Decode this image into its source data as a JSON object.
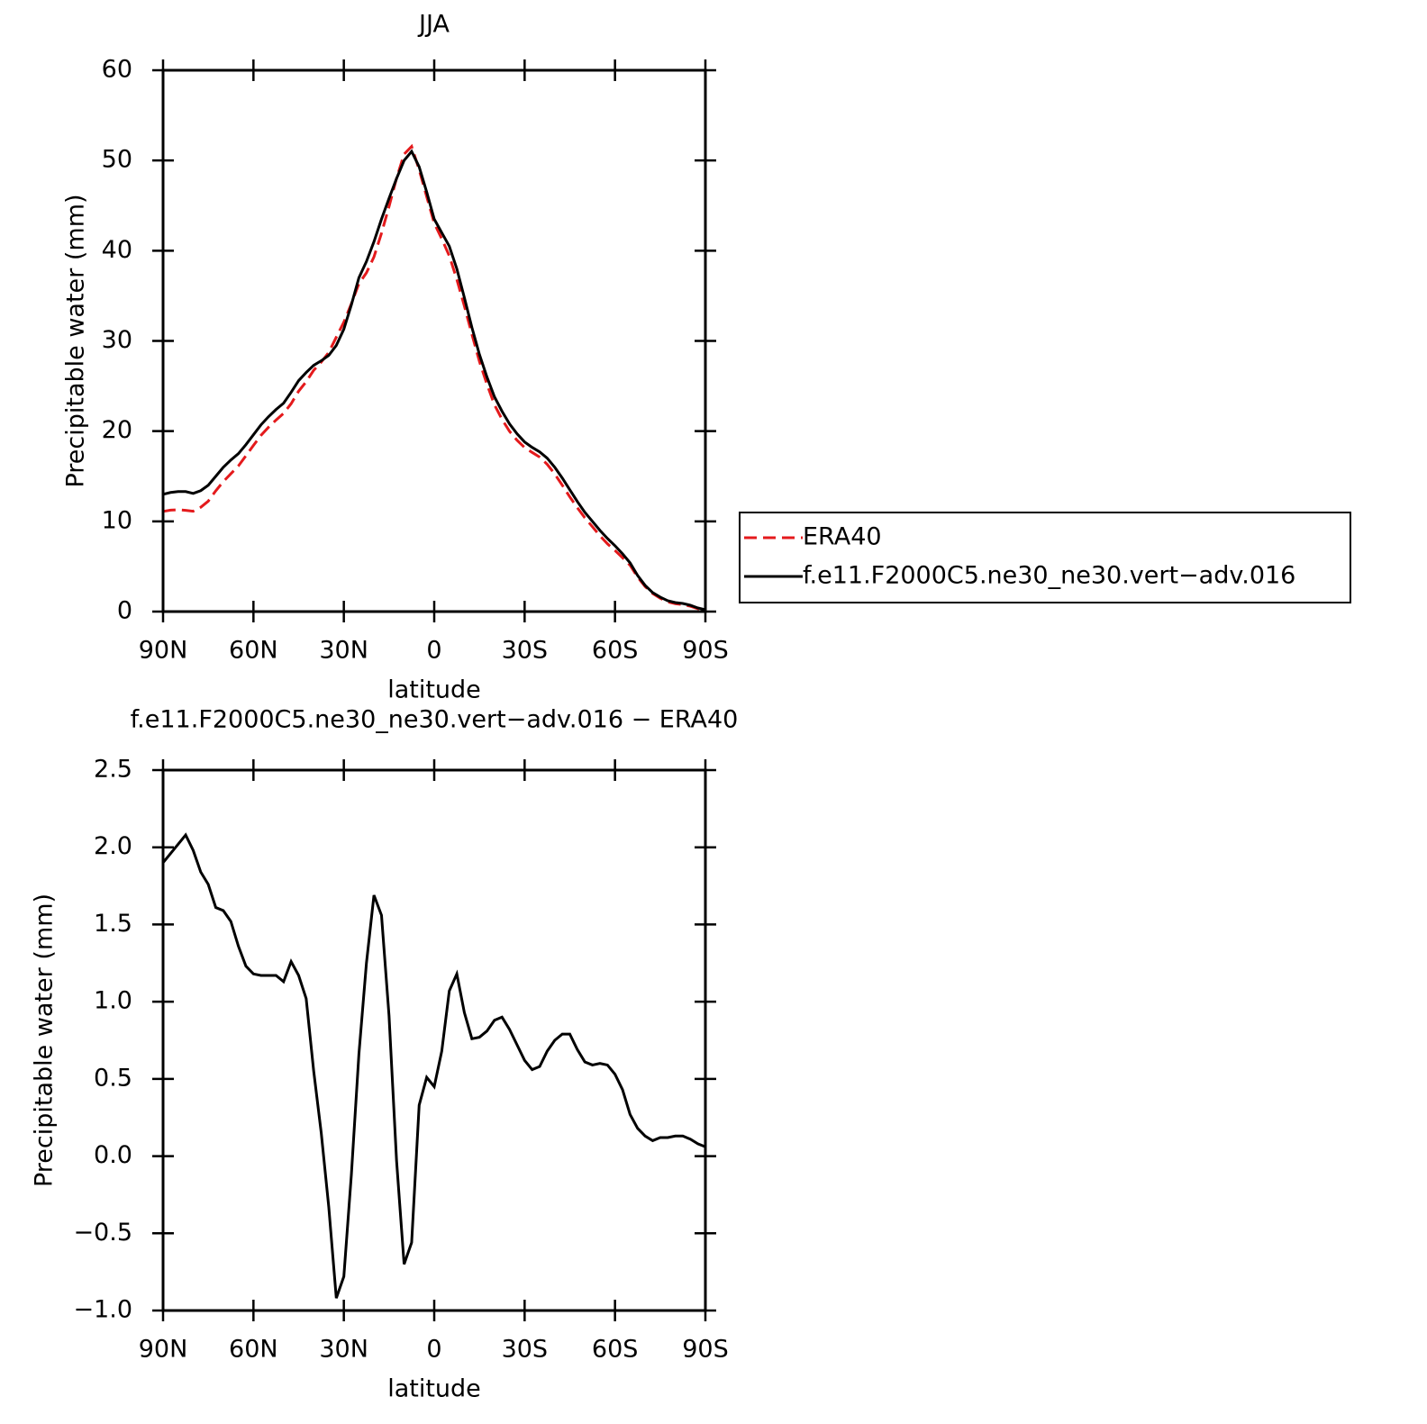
{
  "chart_data": [
    {
      "type": "line",
      "title": "JJA",
      "xlabel": "latitude",
      "ylabel": "Precipitable water (mm)",
      "x": [
        90,
        87.5,
        85,
        82.5,
        80,
        77.5,
        75,
        72.5,
        70,
        67.5,
        65,
        62.5,
        60,
        57.5,
        55,
        52.5,
        50,
        47.5,
        45,
        42.5,
        40,
        37.5,
        35,
        32.5,
        30,
        27.5,
        25,
        22.5,
        20,
        17.5,
        15,
        12.5,
        10,
        7.5,
        5,
        2.5,
        0,
        -2.5,
        -5,
        -7.5,
        -10,
        -12.5,
        -15,
        -17.5,
        -20,
        -22.5,
        -25,
        -27.5,
        -30,
        -32.5,
        -35,
        -37.5,
        -40,
        -42.5,
        -45,
        -47.5,
        -50,
        -52.5,
        -55,
        -57.5,
        -60,
        -62.5,
        -65,
        -67.5,
        -70,
        -72.5,
        -75,
        -77.5,
        -80,
        -82.5,
        -85,
        -87.5,
        -90
      ],
      "series": [
        {
          "name": "ERA40",
          "color": "#e41a1c",
          "line_style": "dashed",
          "values": [
            11.1,
            11.24,
            11.28,
            11.22,
            11.12,
            11.56,
            12.24,
            13.39,
            14.41,
            15.28,
            16.14,
            17.27,
            18.42,
            19.53,
            20.43,
            21.23,
            21.97,
            23.04,
            24.43,
            25.48,
            26.75,
            27.65,
            28.73,
            30.42,
            32.08,
            34.12,
            36.34,
            37.55,
            39.31,
            41.94,
            44.89,
            48.03,
            50.7,
            51.56,
            48.97,
            45.99,
            43.05,
            41.32,
            39.43,
            36.82,
            33.87,
            30.74,
            27.73,
            25.19,
            22.92,
            21.3,
            19.98,
            18.98,
            18.18,
            17.64,
            17.12,
            16.32,
            15.25,
            14.01,
            12.71,
            11.51,
            10.39,
            9.41,
            8.4,
            7.51,
            6.77,
            5.97,
            5.13,
            3.82,
            2.77,
            2.0,
            1.48,
            1.08,
            0.87,
            0.77,
            0.59,
            0.32,
            0.14
          ]
        },
        {
          "name": "f.e11.F2000C5.ne30_ne30.vert−adv.016",
          "color": "#000000",
          "line_style": "solid",
          "values": [
            13.0,
            13.2,
            13.3,
            13.3,
            13.1,
            13.4,
            14.0,
            15.0,
            16.0,
            16.8,
            17.5,
            18.5,
            19.6,
            20.7,
            21.6,
            22.4,
            23.1,
            24.3,
            25.6,
            26.5,
            27.3,
            27.8,
            28.4,
            29.5,
            31.3,
            34.0,
            37.0,
            38.8,
            41.0,
            43.5,
            45.8,
            48.0,
            50.0,
            51.0,
            49.3,
            46.5,
            43.5,
            42.0,
            40.5,
            38.0,
            34.8,
            31.5,
            28.5,
            26.0,
            23.8,
            22.2,
            20.8,
            19.7,
            18.8,
            18.2,
            17.7,
            17.0,
            16.0,
            14.8,
            13.5,
            12.2,
            11.0,
            10.0,
            9.0,
            8.1,
            7.3,
            6.4,
            5.4,
            4.0,
            2.9,
            2.1,
            1.6,
            1.2,
            1.0,
            0.9,
            0.7,
            0.4,
            0.2
          ]
        }
      ],
      "xlim": [
        90,
        -90
      ],
      "xticks": [
        {
          "value": 90,
          "label": "90N"
        },
        {
          "value": 60,
          "label": "60N"
        },
        {
          "value": 30,
          "label": "30N"
        },
        0,
        {
          "value": -30,
          "label": "30S"
        },
        {
          "value": -60,
          "label": "60S"
        },
        {
          "value": -90,
          "label": "90S"
        }
      ],
      "ylim": [
        0,
        60
      ],
      "yticks": [
        0,
        10,
        20,
        30,
        40,
        50,
        60
      ],
      "legend": "right"
    },
    {
      "type": "line",
      "title": "f.e11.F2000C5.ne30_ne30.vert−adv.016 − ERA40",
      "xlabel": "latitude",
      "ylabel": "Precipitable water (mm)",
      "x": [
        90,
        87.5,
        85,
        82.5,
        80,
        77.5,
        75,
        72.5,
        70,
        67.5,
        65,
        62.5,
        60,
        57.5,
        55,
        52.5,
        50,
        47.5,
        45,
        42.5,
        40,
        37.5,
        35,
        32.5,
        30,
        27.5,
        25,
        22.5,
        20,
        17.5,
        15,
        12.5,
        10,
        7.5,
        5,
        2.5,
        0,
        -2.5,
        -5,
        -7.5,
        -10,
        -12.5,
        -15,
        -17.5,
        -20,
        -22.5,
        -25,
        -27.5,
        -30,
        -32.5,
        -35,
        -37.5,
        -40,
        -42.5,
        -45,
        -47.5,
        -50,
        -52.5,
        -55,
        -57.5,
        -60,
        -62.5,
        -65,
        -67.5,
        -70,
        -72.5,
        -75,
        -77.5,
        -80,
        -82.5,
        -85,
        -87.5,
        -90
      ],
      "series": [
        {
          "color": "#000000",
          "line_style": "solid",
          "values": [
            1.9,
            1.96,
            2.02,
            2.08,
            1.98,
            1.84,
            1.76,
            1.61,
            1.59,
            1.52,
            1.36,
            1.23,
            1.18,
            1.17,
            1.17,
            1.17,
            1.13,
            1.26,
            1.17,
            1.02,
            0.55,
            0.15,
            -0.33,
            -0.92,
            -0.78,
            -0.12,
            0.66,
            1.25,
            1.69,
            1.56,
            0.91,
            -0.03,
            -0.7,
            -0.56,
            0.33,
            0.51,
            0.45,
            0.68,
            1.07,
            1.18,
            0.93,
            0.76,
            0.77,
            0.81,
            0.88,
            0.9,
            0.82,
            0.72,
            0.62,
            0.56,
            0.58,
            0.68,
            0.75,
            0.79,
            0.79,
            0.69,
            0.61,
            0.59,
            0.6,
            0.59,
            0.53,
            0.43,
            0.27,
            0.18,
            0.13,
            0.1,
            0.12,
            0.12,
            0.13,
            0.13,
            0.11,
            0.08,
            0.06
          ]
        }
      ],
      "xlim": [
        90,
        -90
      ],
      "xticks": [
        {
          "value": 90,
          "label": "90N"
        },
        {
          "value": 60,
          "label": "60N"
        },
        {
          "value": 30,
          "label": "30N"
        },
        0,
        {
          "value": -30,
          "label": "30S"
        },
        {
          "value": -60,
          "label": "60S"
        },
        {
          "value": -90,
          "label": "90S"
        }
      ],
      "ylim": [
        -1,
        2.5
      ],
      "yticks": [
        {
          "value": -1,
          "label": "−1.0"
        },
        {
          "value": -0.5,
          "label": "−0.5"
        },
        {
          "value": 0,
          "label": "0.0"
        },
        0.5,
        {
          "value": 1,
          "label": "1.0"
        },
        1.5,
        {
          "value": 2,
          "label": "2.0"
        },
        2.5
      ]
    }
  ]
}
